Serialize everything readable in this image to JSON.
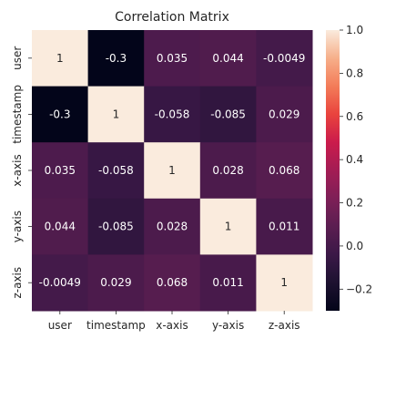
{
  "chart_data": {
    "type": "heatmap",
    "title": "Correlation Matrix",
    "x_labels": [
      "user",
      "timestamp",
      "x-axis",
      "y-axis",
      "z-axis"
    ],
    "y_labels": [
      "user",
      "timestamp",
      "x-axis",
      "y-axis",
      "z-axis"
    ],
    "matrix": [
      [
        1,
        -0.3,
        0.035,
        0.044,
        -0.0049
      ],
      [
        -0.3,
        1,
        -0.058,
        -0.085,
        0.029
      ],
      [
        0.035,
        -0.058,
        1,
        0.028,
        0.068
      ],
      [
        0.044,
        -0.085,
        0.028,
        1,
        0.011
      ],
      [
        -0.0049,
        0.029,
        0.068,
        0.011,
        1
      ]
    ],
    "cell_text": [
      [
        "1",
        "-0.3",
        "0.035",
        "0.044",
        "-0.0049"
      ],
      [
        "-0.3",
        "1",
        "-0.058",
        "-0.085",
        "0.029"
      ],
      [
        "0.035",
        "-0.058",
        "1",
        "0.028",
        "0.068"
      ],
      [
        "0.044",
        "-0.085",
        "0.028",
        "1",
        "0.011"
      ],
      [
        "-0.0049",
        "0.029",
        "0.068",
        "0.011",
        "1"
      ]
    ],
    "colorbar": {
      "range": [
        -0.3,
        1
      ],
      "ticks": [
        -0.2,
        0.0,
        0.2,
        0.4,
        0.6,
        0.8,
        1.0
      ],
      "tick_labels": [
        "−0.2",
        "0.0",
        "0.2",
        "0.4",
        "0.6",
        "0.8",
        "1.0"
      ],
      "colormap": "rocket"
    }
  }
}
